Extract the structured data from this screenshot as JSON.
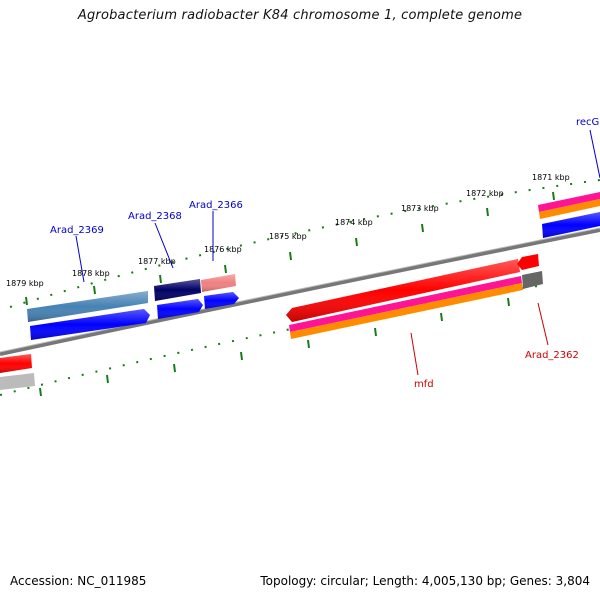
{
  "title": "Agrobacterium radiobacter K84 chromosome 1, complete genome",
  "footer": {
    "accession": "Accession: NC_011985",
    "topology": "Topology: circular; Length: 4,005,130 bp; Genes: 3,804"
  },
  "colors": {
    "backbone": "#777777",
    "tick": "#1a7a1a",
    "gene_label_top": "#0000cc",
    "gene_label_bottom": "#cc0000",
    "blue": "#0000ff",
    "navy": "#000066",
    "steelblue": "#4682b4",
    "salmon": "#f08080",
    "red": "#ff0000",
    "magenta": "#ff1493",
    "orange": "#ff8c00",
    "gray": "#777777",
    "silver": "#bbbbbb"
  },
  "kbp_labels": [
    "1871 kbp",
    "1872 kbp",
    "1873 kbp",
    "1874 kbp",
    "1875 kbp",
    "1876 kbp",
    "1877 kbp",
    "1878 kbp",
    "1879 kbp"
  ],
  "gene_labels_top": [
    "recG",
    "Arad_2366",
    "Arad_2368",
    "Arad_2369"
  ],
  "gene_labels_bottom": [
    "Arad_2362",
    "mfd"
  ]
}
